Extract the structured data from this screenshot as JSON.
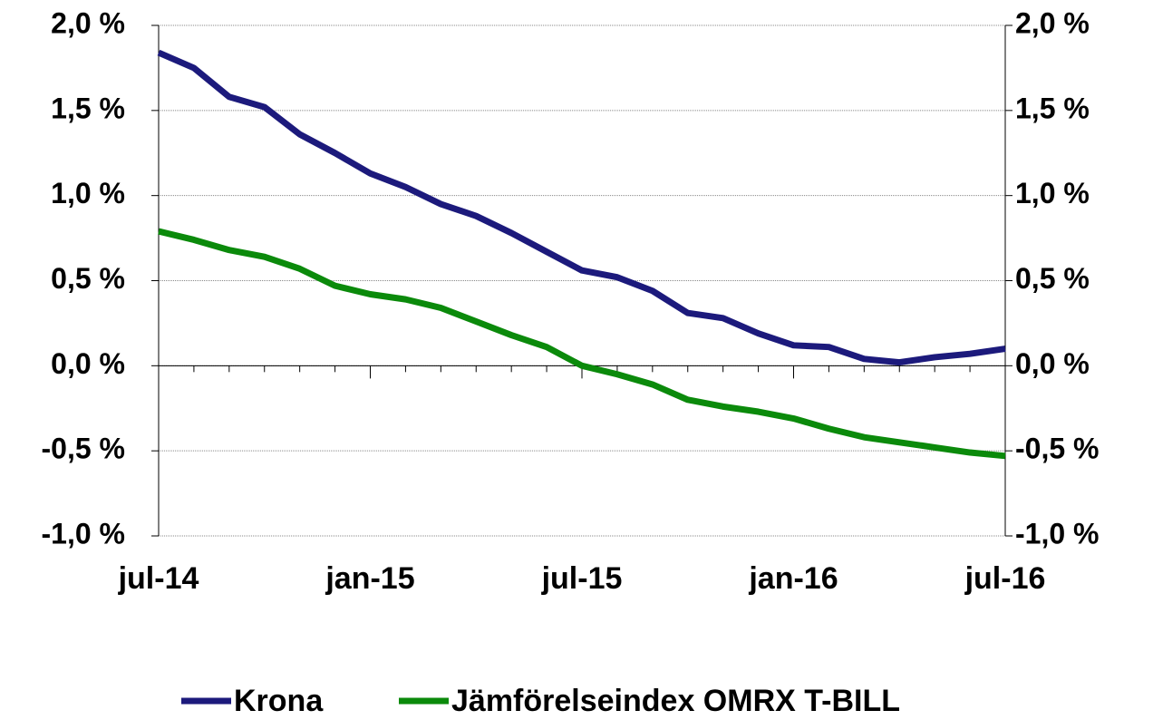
{
  "chart_data": {
    "type": "line",
    "categories": [
      "jul-14",
      null,
      null,
      null,
      null,
      null,
      "jan-15",
      null,
      null,
      null,
      null,
      null,
      "jul-15",
      null,
      null,
      null,
      null,
      null,
      "jan-16",
      null,
      null,
      null,
      null,
      null,
      "jul-16"
    ],
    "series": [
      {
        "name": "Krona",
        "color": "#1c1a7c",
        "values": [
          1.84,
          1.75,
          1.58,
          1.52,
          1.36,
          1.25,
          1.13,
          1.05,
          0.95,
          0.88,
          0.78,
          0.67,
          0.56,
          0.52,
          0.44,
          0.31,
          0.28,
          0.19,
          0.12,
          0.11,
          0.04,
          0.02,
          0.05,
          0.07,
          0.1
        ]
      },
      {
        "name": "Jämförelseindex OMRX T-BILL",
        "color": "#0b8a0b",
        "values": [
          0.79,
          0.74,
          0.68,
          0.64,
          0.57,
          0.47,
          0.42,
          0.39,
          0.34,
          0.26,
          0.18,
          0.11,
          0.0,
          -0.05,
          -0.11,
          -0.2,
          -0.24,
          -0.27,
          -0.31,
          -0.37,
          -0.42,
          -0.45,
          -0.48,
          -0.51,
          -0.53
        ]
      }
    ],
    "ylim": [
      -1,
      2
    ],
    "yticks": [
      {
        "value": -1,
        "label": "-1,0 %"
      },
      {
        "value": -0.5,
        "label": "-0,5 %"
      },
      {
        "value": 0,
        "label": "0,0 %"
      },
      {
        "value": 0.5,
        "label": "0,5 %"
      },
      {
        "value": 1,
        "label": "1,0 %"
      },
      {
        "value": 1.5,
        "label": "1,5 %"
      },
      {
        "value": 2,
        "label": "2,0 %"
      }
    ],
    "y2lim": [
      -1,
      2
    ],
    "y2ticks": [
      {
        "value": -1,
        "label": "-1,0 %"
      },
      {
        "value": -0.5,
        "label": "-0,5 %"
      },
      {
        "value": 0,
        "label": "0,0 %"
      },
      {
        "value": 0.5,
        "label": "0,5 %"
      },
      {
        "value": 1,
        "label": "1,0 %"
      },
      {
        "value": 1.5,
        "label": "1,5 %"
      },
      {
        "value": 2,
        "label": "2,0 %"
      }
    ],
    "grid": true,
    "legend": "bottom"
  }
}
